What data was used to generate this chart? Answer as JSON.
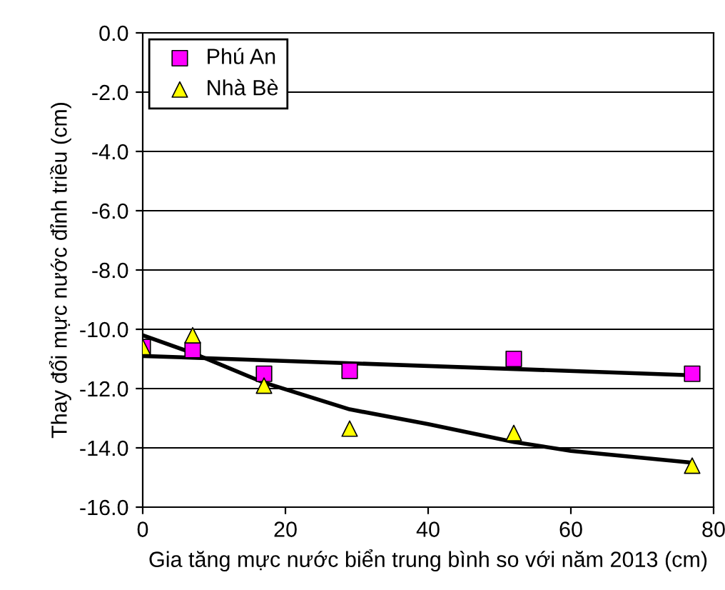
{
  "chart_data": {
    "type": "scatter",
    "xlabel": "Gia tăng mực nước biển trung bình so với năm 2013 (cm)",
    "ylabel": "Thay đổi mực nước đỉnh triều (cm)",
    "xlim": [
      0,
      80
    ],
    "xticks": [
      0,
      20,
      40,
      60,
      80
    ],
    "ylim": [
      -16,
      0
    ],
    "yticks": [
      {
        "value": -16,
        "label": "-16.0"
      },
      {
        "value": -14,
        "label": "-14.0"
      },
      {
        "value": -12,
        "label": "-12.0"
      },
      {
        "value": -10,
        "label": "-10.0"
      },
      {
        "value": -8,
        "label": "-8.0"
      },
      {
        "value": -6,
        "label": "-6.0"
      },
      {
        "value": -4,
        "label": "-4.0"
      },
      {
        "value": -2,
        "label": "-2.0"
      },
      {
        "value": 0,
        "label": "0.0"
      }
    ],
    "grid": "y",
    "legend": "top left",
    "series": [
      {
        "name": "Phú An",
        "color": "#ff00ff",
        "marker": "square",
        "x": [
          0,
          7,
          17,
          29,
          52,
          77
        ],
        "values": [
          -10.6,
          -10.7,
          -11.5,
          -11.4,
          -11.0,
          -11.5
        ]
      },
      {
        "name": "Nhà Bè",
        "color": "#ffff00",
        "marker": "triangle",
        "x": [
          0,
          7,
          17,
          29,
          52,
          77
        ],
        "values": [
          -10.6,
          -10.2,
          -11.9,
          -13.35,
          -13.5,
          -14.6
        ]
      },
      {
        "type": "line",
        "color": "#000000",
        "x": [
          0,
          77
        ],
        "values": [
          -10.9,
          -11.55
        ]
      },
      {
        "type": "line",
        "color": "#000000",
        "x": [
          0,
          7,
          17,
          29,
          40,
          52,
          60,
          77
        ],
        "values": [
          -10.2,
          -10.8,
          -11.8,
          -12.7,
          -13.2,
          -13.8,
          -14.1,
          -14.5
        ]
      }
    ]
  }
}
